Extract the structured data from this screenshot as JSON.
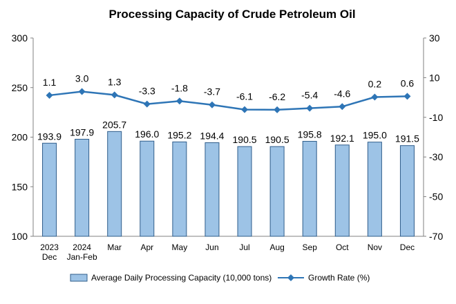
{
  "chart_data": {
    "type": "bar",
    "title": "Processing Capacity of Crude Petroleum Oil",
    "categories": [
      [
        "2023",
        "Dec"
      ],
      [
        "2024",
        "Jan-Feb"
      ],
      [
        "Mar"
      ],
      [
        "Apr"
      ],
      [
        "May"
      ],
      [
        "Jun"
      ],
      [
        "Jul"
      ],
      [
        "Aug"
      ],
      [
        "Sep"
      ],
      [
        "Oct"
      ],
      [
        "Nov"
      ],
      [
        "Dec"
      ]
    ],
    "series": [
      {
        "name": "Average Daily Processing Capacity (10,000 tons)",
        "type": "bar",
        "axis": "left",
        "values": [
          193.9,
          197.9,
          205.7,
          196.0,
          195.2,
          194.4,
          190.5,
          190.5,
          195.8,
          192.1,
          195.0,
          191.5
        ],
        "labels": [
          "193.9",
          "197.9",
          "205.7",
          "196.0",
          "195.2",
          "194.4",
          "190.5",
          "190.5",
          "195.8",
          "192.1",
          "195.0",
          "191.5"
        ],
        "color": "#9DC3E6",
        "stroke": "#2E5C8A"
      },
      {
        "name": "Growth Rate (%)",
        "type": "line",
        "axis": "right",
        "values": [
          1.1,
          3.0,
          1.3,
          -3.3,
          -1.8,
          -3.7,
          -6.1,
          -6.2,
          -5.4,
          -4.6,
          0.2,
          0.6
        ],
        "labels": [
          "1.1",
          "3.0",
          "1.3",
          "-3.3",
          "-1.8",
          "-3.7",
          "-6.1",
          "-6.2",
          "-5.4",
          "-4.6",
          "0.2",
          "0.6"
        ],
        "color": "#2E75B6"
      }
    ],
    "y_left": {
      "min": 100,
      "max": 300,
      "ticks": [
        "100",
        "150",
        "200",
        "250",
        "300"
      ]
    },
    "y_right": {
      "min": -70,
      "max": 30,
      "ticks": [
        "-70",
        "-50",
        "-30",
        "-10",
        "10",
        "30"
      ]
    },
    "grid": false,
    "legend_position": "bottom"
  }
}
